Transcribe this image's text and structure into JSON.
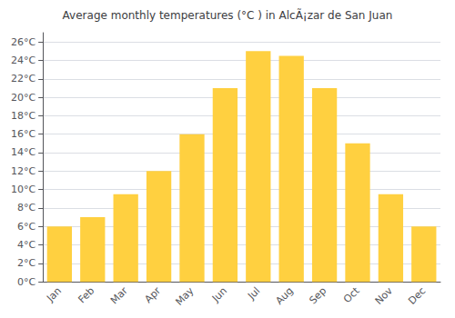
{
  "chart_data": {
    "type": "bar",
    "title": "Average monthly temperatures (°C ) in AlcÃ¡zar de San Juan",
    "categories": [
      "Jan",
      "Feb",
      "Mar",
      "Apr",
      "May",
      "Jun",
      "Jul",
      "Aug",
      "Sep",
      "Oct",
      "Nov",
      "Dec"
    ],
    "values": [
      6,
      7,
      9.5,
      12,
      16,
      21,
      25,
      24.5,
      21,
      15,
      9.5,
      6
    ],
    "color": "#FFD040",
    "ylim": [
      0,
      27
    ],
    "yticks": [
      {
        "value": 0,
        "label": "0°C"
      },
      {
        "value": 2,
        "label": "2°C"
      },
      {
        "value": 4,
        "label": "4°C"
      },
      {
        "value": 6,
        "label": "6°C"
      },
      {
        "value": 8,
        "label": "8°C"
      },
      {
        "value": 10,
        "label": "10°C"
      },
      {
        "value": 12,
        "label": "12°C"
      },
      {
        "value": 14,
        "label": "14°C"
      },
      {
        "value": 16,
        "label": "16°C"
      },
      {
        "value": 18,
        "label": "18°C"
      },
      {
        "value": 20,
        "label": "20°C"
      },
      {
        "value": 22,
        "label": "22°C"
      },
      {
        "value": 24,
        "label": "24°C"
      },
      {
        "value": 26,
        "label": "26°C"
      }
    ],
    "grid": true
  }
}
